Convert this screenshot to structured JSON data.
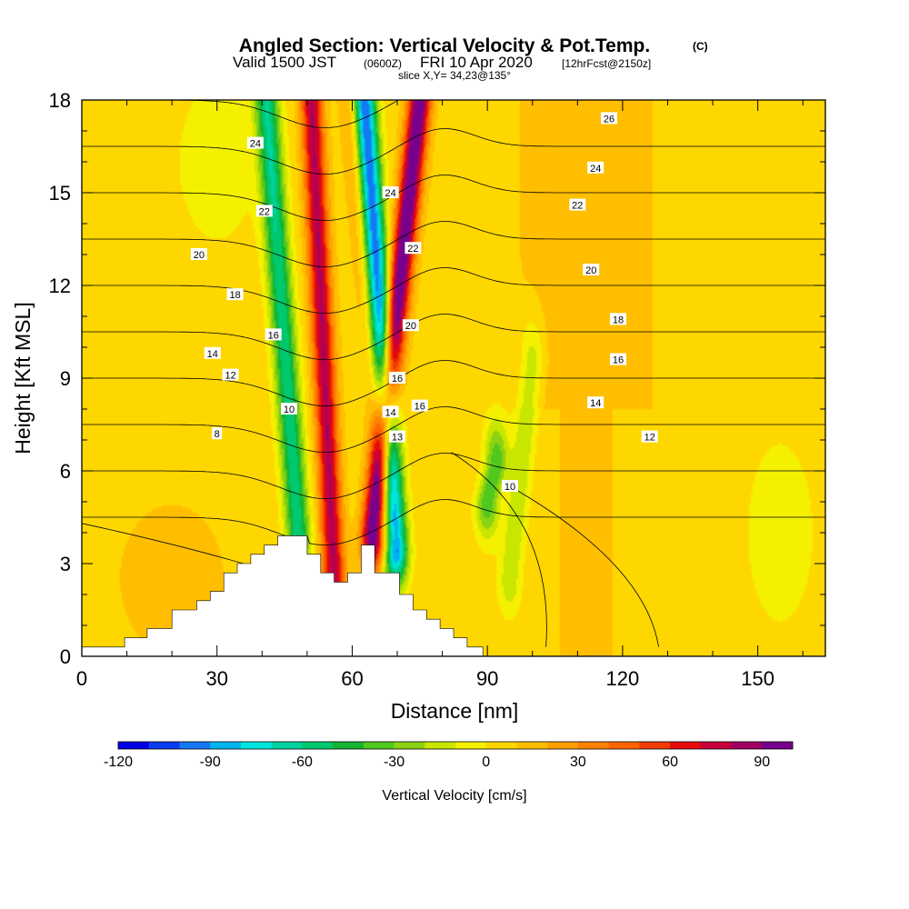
{
  "title": {
    "main": "Angled Section: Vertical Velocity & Pot.Temp.",
    "main_tag": "(C)",
    "valid_prefix": "Valid 1500 JST",
    "valid_z": "(0600Z)",
    "valid_date": "FRI 10 Apr 2020",
    "valid_fcst": "[12hrFcst@2150z]",
    "slice": "slice X,Y= 34,23@135°"
  },
  "chart_data": {
    "type": "heatmap",
    "xlabel": "Distance [nm]",
    "ylabel": "Height [Kft MSL]",
    "xlim": [
      0,
      165
    ],
    "ylim": [
      0,
      18
    ],
    "xticks": [
      0,
      30,
      60,
      90,
      120,
      150
    ],
    "yticks": [
      0,
      3,
      6,
      9,
      12,
      15,
      18
    ],
    "colorbar": {
      "label": "Vertical Velocity [cm/s]",
      "range": [
        -120,
        100
      ],
      "tick_values": [
        -120,
        -90,
        -60,
        -30,
        0,
        30,
        60,
        90
      ],
      "tick_labels": [
        "-120",
        "-90",
        "-60",
        "-30",
        "0",
        "30",
        "60",
        "90"
      ],
      "colors": [
        "#0000e6",
        "#0a3cf0",
        "#1478f5",
        "#00b4f0",
        "#00e6dc",
        "#00d2a0",
        "#00c86e",
        "#14b432",
        "#50c81e",
        "#8cd214",
        "#c8e600",
        "#f5f000",
        "#ffd700",
        "#ffbe00",
        "#ffa000",
        "#ff8200",
        "#ff6400",
        "#f03c00",
        "#e60a0a",
        "#c8003c",
        "#a00064",
        "#78008c"
      ]
    },
    "terrain": {
      "x": [
        0,
        9.5,
        9.5,
        14.5,
        14.5,
        20,
        20,
        25.5,
        25.5,
        28.5,
        28.5,
        31.5,
        31.5,
        34.5,
        34.5,
        37.5,
        37.5,
        40.5,
        40.5,
        43.5,
        43.5,
        46.5,
        46.5,
        50,
        50,
        53,
        53,
        56,
        56,
        59,
        59,
        62,
        62,
        65,
        65,
        70.5,
        70.5,
        73.5,
        73.5,
        76.5,
        76.5,
        79.5,
        79.5,
        82.5,
        82.5,
        85.5,
        85.5,
        89,
        89,
        165
      ],
      "z": [
        0.3,
        0.3,
        0.6,
        0.6,
        0.9,
        0.9,
        1.5,
        1.5,
        1.8,
        1.8,
        2.1,
        2.1,
        2.7,
        2.7,
        3.0,
        3.0,
        3.3,
        3.3,
        3.6,
        3.6,
        3.9,
        3.9,
        3.9,
        3.9,
        3.3,
        3.3,
        2.7,
        2.7,
        2.4,
        2.4,
        2.7,
        2.7,
        3.6,
        3.6,
        2.7,
        2.7,
        2.0,
        2.0,
        1.5,
        1.5,
        1.2,
        1.2,
        0.9,
        0.9,
        0.6,
        0.6,
        0.3,
        0.3,
        0.0,
        0.0
      ]
    },
    "vertical_velocity_features": [
      {
        "kind": "downdraft",
        "x_base": 48,
        "x_top": 41,
        "z_base": 4.0,
        "z_top": 18,
        "peak": -65
      },
      {
        "kind": "updraft",
        "x_base": 56,
        "x_top": 51,
        "z_base": 2.5,
        "z_top": 18,
        "peak": 75
      },
      {
        "kind": "downdraft",
        "x_base": 69.5,
        "x_top": 62.5,
        "z_base": 3.5,
        "z_top": 18,
        "peak": -115
      },
      {
        "kind": "updraft",
        "x_base": 64.5,
        "x_top": 75,
        "z_base": 4.0,
        "z_top": 18,
        "peak": 100
      },
      {
        "kind": "updraft",
        "x_base": 68,
        "x_top": 60,
        "z_base": 4.0,
        "z_top": 18,
        "peak": 35
      },
      {
        "kind": "downdraft",
        "x_base": 90,
        "x_top": 92,
        "z_base": 5.0,
        "z_top": 6.2,
        "peak": -45
      },
      {
        "kind": "downdraft",
        "x_base": 95,
        "x_top": 100,
        "z_base": 2.5,
        "z_top": 9.5,
        "peak": -25
      }
    ],
    "pot_temp_labels": [
      {
        "value": "26",
        "x": 117,
        "z": 17.4
      },
      {
        "value": "24",
        "x": 38.5,
        "z": 16.6
      },
      {
        "value": "24",
        "x": 68.5,
        "z": 15.0
      },
      {
        "value": "24",
        "x": 114,
        "z": 15.8
      },
      {
        "value": "22",
        "x": 40.5,
        "z": 14.4
      },
      {
        "value": "22",
        "x": 73.5,
        "z": 13.2
      },
      {
        "value": "22",
        "x": 110,
        "z": 14.6
      },
      {
        "value": "20",
        "x": 26,
        "z": 13.0
      },
      {
        "value": "20",
        "x": 73,
        "z": 10.7
      },
      {
        "value": "20",
        "x": 113,
        "z": 12.5
      },
      {
        "value": "18",
        "x": 34,
        "z": 11.7
      },
      {
        "value": "18",
        "x": 119,
        "z": 10.9
      },
      {
        "value": "16",
        "x": 42.5,
        "z": 10.4
      },
      {
        "value": "16",
        "x": 70,
        "z": 9.0
      },
      {
        "value": "16",
        "x": 75,
        "z": 8.1
      },
      {
        "value": "16",
        "x": 119,
        "z": 9.6
      },
      {
        "value": "14",
        "x": 29,
        "z": 9.8
      },
      {
        "value": "14",
        "x": 68.5,
        "z": 7.9
      },
      {
        "value": "14",
        "x": 114,
        "z": 8.2
      },
      {
        "value": "13",
        "x": 70,
        "z": 7.1
      },
      {
        "value": "12",
        "x": 33,
        "z": 9.1
      },
      {
        "value": "12",
        "x": 126,
        "z": 7.1
      },
      {
        "value": "10",
        "x": 46,
        "z": 8.0
      },
      {
        "value": "10",
        "x": 95,
        "z": 5.5
      },
      {
        "value": "8",
        "x": 30,
        "z": 7.2
      }
    ]
  }
}
